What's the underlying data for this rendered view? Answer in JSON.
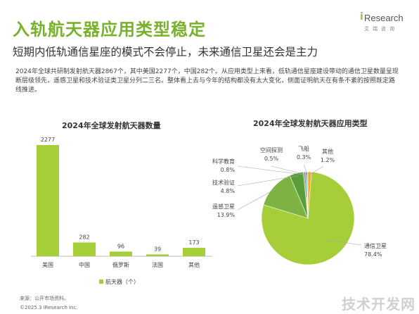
{
  "header": {
    "title": "入轨航天器应用类型稳定",
    "subtitle": "短期内低轨通信星座的模式不会停止，未来通信卫星还会是主力",
    "body": "2024年全球共研制发射航天器2867个，其中美国2277个，中国282个。从应用类型上来看，低轨通信星座建设带动的通信卫星数量呈现断层级领先，遥感卫星和技术验证类卫星分列二三名。整体看上去与今年的结构都没有太大变化，侧面证明航天在有条不紊的按照既定路线推进。"
  },
  "logo": {
    "mark": "i",
    "name": "Research",
    "sub": "艾瑞咨询"
  },
  "footer": {
    "source": "来源：公开市场资料。",
    "copyright": "©2025.3 iResearch Inc."
  },
  "watermark": "技术开发网",
  "colors": {
    "accent": "#8cc63f",
    "title": "#79b12c"
  },
  "chart_data": [
    {
      "type": "bar",
      "title": "2024年全球发射航天器数量",
      "categories": [
        "美国",
        "中国",
        "俄罗斯",
        "法国",
        "其他"
      ],
      "series": [
        {
          "name": "航天器（个）",
          "values": [
            2277,
            282,
            96,
            39,
            173
          ],
          "color": "#a6ce39"
        }
      ],
      "ylim": [
        0,
        2277
      ],
      "grid": false,
      "legend": "bottom"
    },
    {
      "type": "pie",
      "title": "2024年全球发射航天器应用类型",
      "slices": [
        {
          "label": "通信卫星",
          "value": 78.4,
          "display": "78.4%",
          "color": "#a6ce39"
        },
        {
          "label": "遥感卫星",
          "value": 13.9,
          "display": "13.9%",
          "color": "#7cb342"
        },
        {
          "label": "技术验证",
          "value": 4.8,
          "display": "4.8%",
          "color": "#5a9e3a"
        },
        {
          "label": "科学教育",
          "value": 0.8,
          "display": "0.8%",
          "color": "#9e9e9e"
        },
        {
          "label": "空间探测",
          "value": 0.5,
          "display": "0.5%",
          "color": "#26a69a"
        },
        {
          "label": "飞船",
          "value": 0.3,
          "display": "0.3%",
          "color": "#4fc3f7"
        },
        {
          "label": "其他",
          "value": 1.2,
          "display": "1.2%",
          "color": "#f5a623"
        }
      ],
      "legend": "none"
    }
  ]
}
